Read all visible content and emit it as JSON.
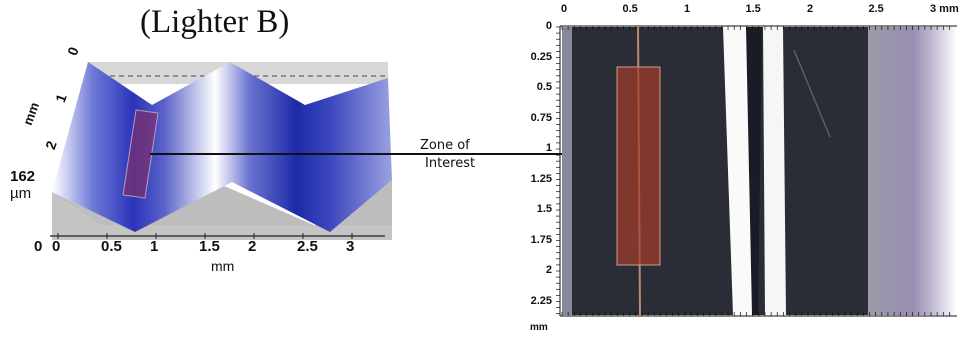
{
  "title": "(Lighter B)",
  "annotation": {
    "line1": "Zone of",
    "line2": "Interest"
  },
  "left_view": {
    "height_top": "0",
    "height_mid": "1",
    "height_lower": "2",
    "height_axis_unit": "mm",
    "z_value": "162",
    "z_unit": "µm",
    "z_zero": "0",
    "x_ticks": [
      "0",
      "0.5",
      "1",
      "1.5",
      "2",
      "2.5",
      "3"
    ],
    "x_unit": "mm",
    "colors": {
      "surface_peak": "#ffffff",
      "surface_valley": "#1f2db0",
      "floor": "#bdbdbd",
      "roi": "#7d2f6a"
    }
  },
  "right_view": {
    "x_ticks": [
      "0",
      "0.5",
      "1",
      "1.5",
      "2",
      "2.5",
      "3 mm"
    ],
    "y_ticks": [
      "0",
      "0.25",
      "0.5",
      "0.75",
      "1",
      "1.25",
      "1.5",
      "1.75",
      "2",
      "2.25"
    ],
    "y_unit": "mm",
    "colors": {
      "sample": "#2a2d35",
      "roi": "#a53d2c",
      "bright_band": "#fafafa",
      "edge_tint": "#c9b8e6"
    }
  }
}
